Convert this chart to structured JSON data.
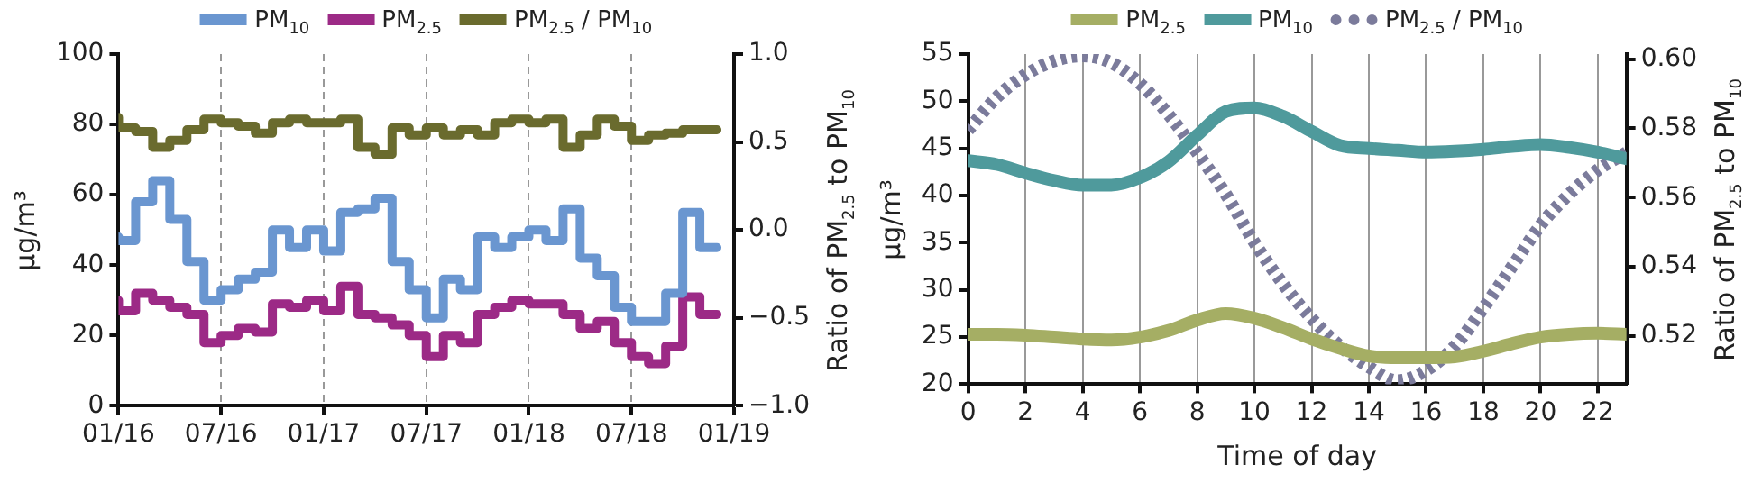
{
  "chart_data": [
    {
      "type": "step",
      "ylabel": "μg/m³",
      "y2label": "Ratio of PM$_{2.5}$ to PM$_{10}$",
      "legend": "top",
      "grid": "x",
      "x": [
        "2016-01",
        "2016-02",
        "2016-03",
        "2016-04",
        "2016-05",
        "2016-06",
        "2016-07",
        "2016-08",
        "2016-09",
        "2016-10",
        "2016-11",
        "2016-12",
        "2017-01",
        "2017-02",
        "2017-03",
        "2017-04",
        "2017-05",
        "2017-06",
        "2017-07",
        "2017-08",
        "2017-09",
        "2017-10",
        "2017-11",
        "2017-12",
        "2018-01",
        "2018-02",
        "2018-03",
        "2018-04",
        "2018-05",
        "2018-06",
        "2018-07",
        "2018-08",
        "2018-09",
        "2018-10",
        "2018-11",
        "2018-12"
      ],
      "xlim": [
        "2016-01",
        "2019-01"
      ],
      "xticks": [
        {
          "value": "2016-01",
          "label": "01/16"
        },
        {
          "value": "2016-07",
          "label": "07/16"
        },
        {
          "value": "2017-01",
          "label": "01/17"
        },
        {
          "value": "2017-07",
          "label": "07/17"
        },
        {
          "value": "2018-01",
          "label": "01/18"
        },
        {
          "value": "2018-07",
          "label": "07/18"
        },
        {
          "value": "2019-01",
          "label": "01/19"
        }
      ],
      "ylim": [
        0,
        100
      ],
      "yticks": [
        0,
        20,
        40,
        60,
        80,
        100
      ],
      "y2lim": [
        -1,
        1
      ],
      "y2ticks": [
        {
          "value": -1,
          "label": "−1.0"
        },
        {
          "value": -0.5,
          "label": "−0.5"
        },
        {
          "value": 0,
          "label": "0.0"
        },
        {
          "value": 0.5,
          "label": "0.5"
        },
        {
          "value": 1,
          "label": "1.0"
        }
      ],
      "series": [
        {
          "name": "PM$_{10}$",
          "color": "#6a96d0",
          "values": [
            48,
            47,
            58,
            64,
            53,
            41,
            30,
            33,
            36,
            38,
            50,
            45,
            50,
            44,
            55,
            56,
            59,
            41,
            33,
            25,
            36,
            33,
            48,
            45,
            48,
            50,
            47,
            56,
            42,
            37,
            28,
            24,
            24,
            32,
            55,
            45
          ]
        },
        {
          "name": "PM$_{2.5}$",
          "color": "#9c2a86",
          "values": [
            30,
            27,
            32,
            30,
            28,
            26,
            18,
            20,
            22,
            21,
            29,
            28,
            30,
            27,
            34,
            26,
            25,
            23,
            20,
            14,
            20,
            18,
            26,
            28,
            30,
            29,
            29,
            26,
            22,
            24,
            18,
            14,
            12,
            17,
            31,
            26
          ]
        },
        {
          "name": "PM$_{2.5}$ / PM$_{10}$",
          "color": "#6a6b2e",
          "axis": "y2",
          "values": [
            0.64,
            0.58,
            0.56,
            0.47,
            0.51,
            0.57,
            0.63,
            0.61,
            0.59,
            0.55,
            0.61,
            0.63,
            0.61,
            0.61,
            0.63,
            0.47,
            0.43,
            0.58,
            0.54,
            0.58,
            0.54,
            0.57,
            0.54,
            0.61,
            0.63,
            0.61,
            0.63,
            0.47,
            0.54,
            0.63,
            0.59,
            0.51,
            0.54,
            0.55,
            0.57,
            0.57
          ]
        }
      ]
    },
    {
      "type": "line",
      "xlabel": "Time of day",
      "ylabel": "μg/m³",
      "y2label": "Ratio of PM$_{2.5}$ to PM$_{10}$",
      "legend": "top",
      "grid": "x",
      "x": [
        0,
        1,
        2,
        3,
        4,
        5,
        6,
        7,
        8,
        9,
        10,
        11,
        12,
        13,
        14,
        15,
        16,
        17,
        18,
        19,
        20,
        21,
        22,
        23
      ],
      "xlim": [
        0,
        23
      ],
      "xticks": [
        0,
        2,
        4,
        6,
        8,
        10,
        12,
        14,
        16,
        18,
        20,
        22
      ],
      "ylim": [
        20,
        55
      ],
      "yticks": [
        20,
        25,
        30,
        35,
        40,
        45,
        50,
        55
      ],
      "y2lim": [
        0.506,
        0.6015
      ],
      "y2ticks": [
        {
          "value": 0.52,
          "label": "0.52"
        },
        {
          "value": 0.54,
          "label": "0.54"
        },
        {
          "value": 0.56,
          "label": "0.56"
        },
        {
          "value": 0.58,
          "label": "0.58"
        },
        {
          "value": 0.6,
          "label": "0.60"
        }
      ],
      "series": [
        {
          "name": "PM$_{2.5}$",
          "color": "#a5ae64",
          "values": [
            25.3,
            25.3,
            25.2,
            25,
            24.8,
            24.7,
            25,
            25.7,
            26.8,
            27.5,
            27,
            26,
            24.8,
            23.8,
            23,
            22.8,
            22.8,
            22.9,
            23.5,
            24.3,
            25,
            25.3,
            25.4,
            25.3
          ]
        },
        {
          "name": "PM$_{10}$",
          "color": "#4f9a9c",
          "values": [
            43.7,
            43.3,
            42.4,
            41.6,
            41.1,
            41.1,
            41.9,
            43.6,
            46.4,
            48.9,
            49.3,
            48.4,
            46.8,
            45.3,
            45,
            44.8,
            44.6,
            44.7,
            44.9,
            45.2,
            45.4,
            45.1,
            44.6,
            43.9
          ]
        },
        {
          "name": "PM$_{2.5}$ / PM$_{10}$",
          "color": "#7b7b9b",
          "axis": "y2",
          "line_style": "dotted",
          "values": [
            0.5795,
            0.589,
            0.5955,
            0.5995,
            0.601,
            0.599,
            0.593,
            0.584,
            0.573,
            0.561,
            0.547,
            0.535,
            0.525,
            0.517,
            0.511,
            0.507,
            0.51,
            0.517,
            0.528,
            0.54,
            0.552,
            0.561,
            0.568,
            0.573
          ]
        }
      ]
    }
  ]
}
